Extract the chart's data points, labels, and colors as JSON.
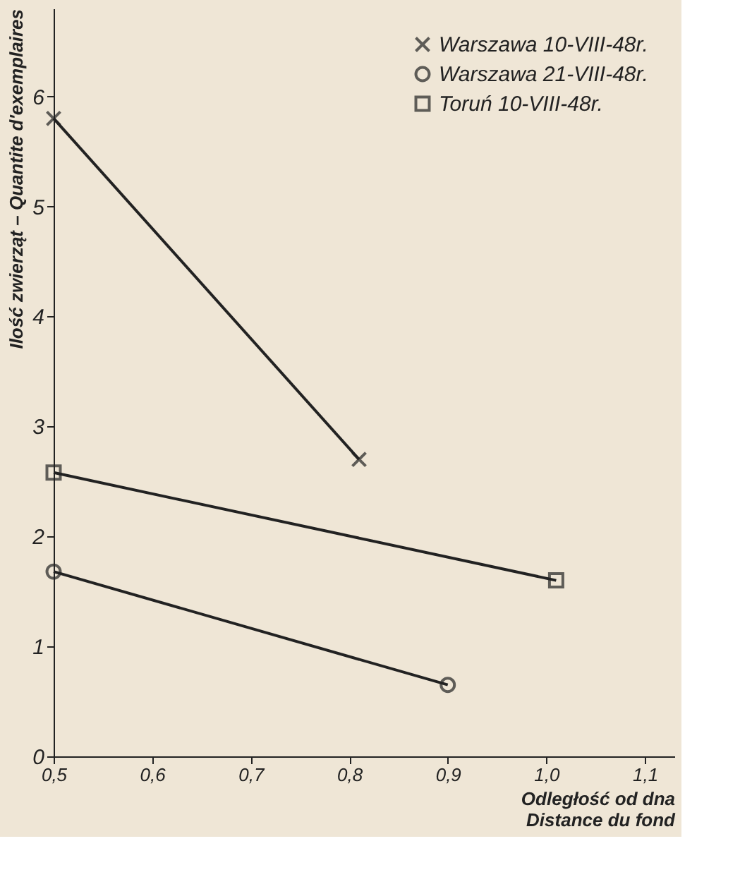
{
  "chart_data": {
    "type": "line",
    "xlabel": "Odległość od dna\nDistance du fond",
    "ylabel": "Ilość zwierząt – Quantite d'exemplaires",
    "xlim": [
      0.5,
      1.13
    ],
    "ylim": [
      0,
      6.8
    ],
    "xticks": [
      {
        "value": 0.5,
        "label": "0,5"
      },
      {
        "value": 0.6,
        "label": "0,6"
      },
      {
        "value": 0.7,
        "label": "0,7"
      },
      {
        "value": 0.8,
        "label": "0,8"
      },
      {
        "value": 0.9,
        "label": "0,9"
      },
      {
        "value": 1.0,
        "label": "1,0"
      },
      {
        "value": 1.1,
        "label": "1,1"
      }
    ],
    "yticks": [
      0,
      1,
      2,
      3,
      4,
      5,
      6
    ],
    "grid": false,
    "legend": "top right",
    "line_style": "solid",
    "series": [
      {
        "name": "Warszawa 10-VIII-48r.",
        "color": "#222222",
        "marker": "cross",
        "x": [
          0.5,
          0.81
        ],
        "values": [
          5.8,
          2.7
        ]
      },
      {
        "name": "Warszawa 21-VIII-48r.",
        "color": "#222222",
        "marker": "circle",
        "x": [
          0.5,
          0.9
        ],
        "values": [
          1.68,
          0.65
        ]
      },
      {
        "name": "Toruń 10-VIII-48r.",
        "color": "#222222",
        "marker": "square",
        "x": [
          0.5,
          1.01
        ],
        "values": [
          2.58,
          1.6
        ]
      }
    ]
  }
}
